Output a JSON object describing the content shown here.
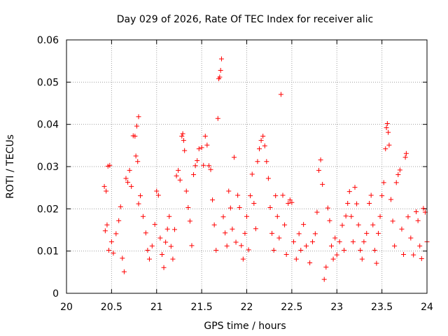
{
  "chart_data": {
    "type": "scatter",
    "title": "Day 029 of 2026, Rate Of TEC Index for receiver alic",
    "xlabel": "GPS time / hours",
    "ylabel": "ROTI / TECUs",
    "xlim": [
      20,
      24
    ],
    "ylim": [
      0,
      0.06
    ],
    "xticks": [
      20,
      20.5,
      21,
      21.5,
      22,
      22.5,
      23,
      23.5,
      24
    ],
    "xtick_labels": [
      "20",
      "20.5",
      "21",
      "21.5",
      "22",
      "22.5",
      "23",
      "23.5",
      "24"
    ],
    "yticks": [
      0,
      0.01,
      0.02,
      0.03,
      0.04,
      0.05,
      0.06
    ],
    "ytick_labels": [
      "0",
      "0.01",
      "0.02",
      "0.03",
      "0.04",
      "0.05",
      "0.06"
    ],
    "grid": true,
    "marker": "+",
    "color": "#ff0000",
    "series": [
      {
        "name": "ROTI",
        "points": [
          [
            20.42,
            0.0253
          ],
          [
            20.44,
            0.0242
          ],
          [
            20.46,
            0.0301
          ],
          [
            20.48,
            0.0303
          ],
          [
            20.43,
            0.0148
          ],
          [
            20.45,
            0.0162
          ],
          [
            20.47,
            0.0102
          ],
          [
            20.5,
            0.0122
          ],
          [
            20.52,
            0.0095
          ],
          [
            20.55,
            0.0141
          ],
          [
            20.58,
            0.0172
          ],
          [
            20.6,
            0.0205
          ],
          [
            20.62,
            0.0083
          ],
          [
            20.64,
            0.0051
          ],
          [
            20.66,
            0.0272
          ],
          [
            20.68,
            0.0263
          ],
          [
            20.7,
            0.0291
          ],
          [
            20.72,
            0.0253
          ],
          [
            20.74,
            0.0373
          ],
          [
            20.76,
            0.0372
          ],
          [
            20.78,
            0.0396
          ],
          [
            20.8,
            0.0418
          ],
          [
            20.77,
            0.0325
          ],
          [
            20.79,
            0.0312
          ],
          [
            20.8,
            0.0212
          ],
          [
            20.82,
            0.0231
          ],
          [
            20.85,
            0.0182
          ],
          [
            20.88,
            0.0143
          ],
          [
            20.9,
            0.0102
          ],
          [
            20.92,
            0.0081
          ],
          [
            20.95,
            0.0112
          ],
          [
            20.98,
            0.0163
          ],
          [
            21.0,
            0.0242
          ],
          [
            21.02,
            0.0232
          ],
          [
            21.04,
            0.0131
          ],
          [
            21.06,
            0.0092
          ],
          [
            21.08,
            0.0061
          ],
          [
            21.1,
            0.0121
          ],
          [
            21.12,
            0.0152
          ],
          [
            21.14,
            0.0182
          ],
          [
            21.16,
            0.0111
          ],
          [
            21.18,
            0.0081
          ],
          [
            21.2,
            0.0151
          ],
          [
            21.22,
            0.0278
          ],
          [
            21.24,
            0.0291
          ],
          [
            21.26,
            0.0268
          ],
          [
            21.28,
            0.0372
          ],
          [
            21.29,
            0.0378
          ],
          [
            21.3,
            0.0362
          ],
          [
            21.31,
            0.0338
          ],
          [
            21.33,
            0.0242
          ],
          [
            21.35,
            0.0203
          ],
          [
            21.37,
            0.0171
          ],
          [
            21.39,
            0.0113
          ],
          [
            21.41,
            0.0281
          ],
          [
            21.43,
            0.0302
          ],
          [
            21.45,
            0.0314
          ],
          [
            21.47,
            0.0342
          ],
          [
            21.5,
            0.0345
          ],
          [
            21.52,
            0.0303
          ],
          [
            21.54,
            0.0372
          ],
          [
            21.56,
            0.0351
          ],
          [
            21.58,
            0.0302
          ],
          [
            21.6,
            0.0293
          ],
          [
            21.62,
            0.0221
          ],
          [
            21.64,
            0.0162
          ],
          [
            21.66,
            0.0102
          ],
          [
            21.68,
            0.0414
          ],
          [
            21.69,
            0.0508
          ],
          [
            21.7,
            0.0512
          ],
          [
            21.71,
            0.0528
          ],
          [
            21.72,
            0.0555
          ],
          [
            21.74,
            0.0181
          ],
          [
            21.76,
            0.0143
          ],
          [
            21.78,
            0.0112
          ],
          [
            21.8,
            0.0242
          ],
          [
            21.82,
            0.0202
          ],
          [
            21.84,
            0.0152
          ],
          [
            21.86,
            0.0322
          ],
          [
            21.88,
            0.0121
          ],
          [
            21.9,
            0.0232
          ],
          [
            21.92,
            0.0203
          ],
          [
            21.94,
            0.0113
          ],
          [
            21.96,
            0.0081
          ],
          [
            21.98,
            0.0142
          ],
          [
            22.0,
            0.0182
          ],
          [
            22.02,
            0.0103
          ],
          [
            22.04,
            0.0231
          ],
          [
            22.06,
            0.0282
          ],
          [
            22.08,
            0.0213
          ],
          [
            22.1,
            0.0153
          ],
          [
            22.12,
            0.0312
          ],
          [
            22.14,
            0.0342
          ],
          [
            22.16,
            0.0362
          ],
          [
            22.18,
            0.0372
          ],
          [
            22.2,
            0.0349
          ],
          [
            22.22,
            0.0312
          ],
          [
            22.24,
            0.0272
          ],
          [
            22.26,
            0.0203
          ],
          [
            22.28,
            0.0142
          ],
          [
            22.3,
            0.0102
          ],
          [
            22.32,
            0.0231
          ],
          [
            22.34,
            0.0182
          ],
          [
            22.36,
            0.0131
          ],
          [
            22.38,
            0.0471
          ],
          [
            22.4,
            0.0232
          ],
          [
            22.42,
            0.0162
          ],
          [
            22.44,
            0.0092
          ],
          [
            22.46,
            0.0213
          ],
          [
            22.48,
            0.0221
          ],
          [
            22.5,
            0.0215
          ],
          [
            22.52,
            0.0122
          ],
          [
            22.55,
            0.0081
          ],
          [
            22.58,
            0.0141
          ],
          [
            22.6,
            0.0102
          ],
          [
            22.63,
            0.0163
          ],
          [
            22.66,
            0.0112
          ],
          [
            22.7,
            0.0072
          ],
          [
            22.73,
            0.0122
          ],
          [
            22.76,
            0.0141
          ],
          [
            22.78,
            0.0192
          ],
          [
            22.8,
            0.0291
          ],
          [
            22.82,
            0.0316
          ],
          [
            22.84,
            0.0258
          ],
          [
            22.86,
            0.0033
          ],
          [
            22.88,
            0.0062
          ],
          [
            22.9,
            0.0202
          ],
          [
            22.92,
            0.0172
          ],
          [
            22.94,
            0.0112
          ],
          [
            22.96,
            0.0081
          ],
          [
            22.98,
            0.0131
          ],
          [
            23.0,
            0.0091
          ],
          [
            23.03,
            0.0122
          ],
          [
            23.06,
            0.0161
          ],
          [
            23.08,
            0.0102
          ],
          [
            23.1,
            0.0183
          ],
          [
            23.12,
            0.0213
          ],
          [
            23.14,
            0.0241
          ],
          [
            23.16,
            0.0182
          ],
          [
            23.18,
            0.0122
          ],
          [
            23.2,
            0.0251
          ],
          [
            23.22,
            0.0212
          ],
          [
            23.24,
            0.0162
          ],
          [
            23.26,
            0.0102
          ],
          [
            23.28,
            0.0081
          ],
          [
            23.3,
            0.0122
          ],
          [
            23.33,
            0.0142
          ],
          [
            23.36,
            0.0213
          ],
          [
            23.38,
            0.0232
          ],
          [
            23.4,
            0.0162
          ],
          [
            23.42,
            0.0102
          ],
          [
            23.44,
            0.0071
          ],
          [
            23.46,
            0.0142
          ],
          [
            23.48,
            0.0182
          ],
          [
            23.5,
            0.0231
          ],
          [
            23.52,
            0.0262
          ],
          [
            23.54,
            0.0342
          ],
          [
            23.55,
            0.0392
          ],
          [
            23.56,
            0.0402
          ],
          [
            23.57,
            0.0381
          ],
          [
            23.58,
            0.0351
          ],
          [
            23.6,
            0.0222
          ],
          [
            23.62,
            0.0171
          ],
          [
            23.64,
            0.0112
          ],
          [
            23.66,
            0.0262
          ],
          [
            23.68,
            0.0281
          ],
          [
            23.7,
            0.0292
          ],
          [
            23.72,
            0.0152
          ],
          [
            23.74,
            0.0092
          ],
          [
            23.76,
            0.0322
          ],
          [
            23.77,
            0.0331
          ],
          [
            23.79,
            0.0181
          ],
          [
            23.82,
            0.0131
          ],
          [
            23.85,
            0.0091
          ],
          [
            23.88,
            0.0193
          ],
          [
            23.9,
            0.0172
          ],
          [
            23.92,
            0.0112
          ],
          [
            23.94,
            0.0082
          ],
          [
            23.96,
            0.0201
          ],
          [
            23.98,
            0.0192
          ],
          [
            24.0,
            0.0122
          ]
        ]
      }
    ]
  }
}
